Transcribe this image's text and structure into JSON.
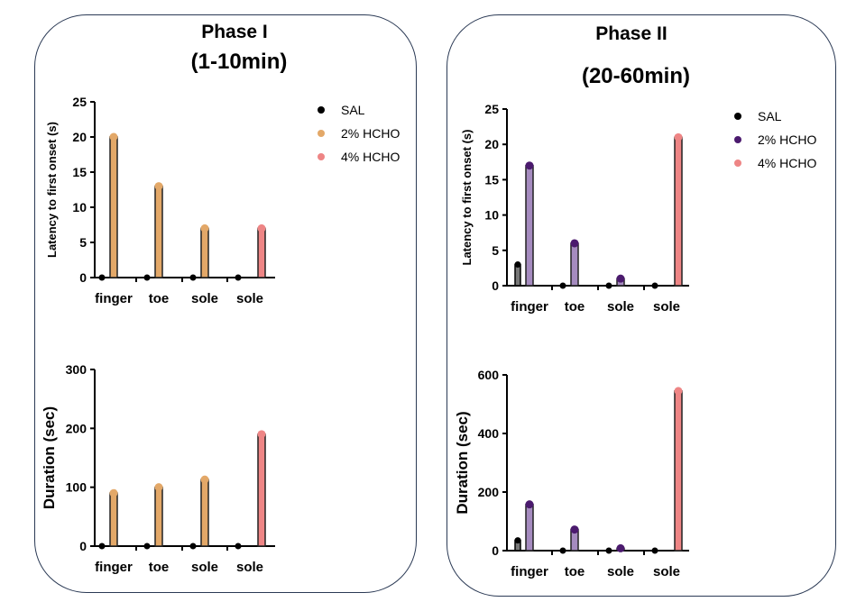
{
  "panels": [
    {
      "title": "Phase I",
      "subtitle": "(1-10min)"
    },
    {
      "title": "Phase II",
      "subtitle": "(20-60min)"
    }
  ],
  "colors": {
    "SAL": "#000000",
    "2% HCHO": "#e3a868",
    "4% HCHO": "#ee8585"
  },
  "chart_data": [
    {
      "type": "bar",
      "panel": "Phase I",
      "title": "",
      "ylabel": "Latency to first onset (s)",
      "xlabel": "",
      "categories": [
        "finger",
        "toe",
        "sole",
        "sole"
      ],
      "series": [
        {
          "name": "SAL",
          "color": "#000000",
          "values": [
            0,
            0,
            0,
            0
          ]
        },
        {
          "name": "2% HCHO",
          "color": "#e3a868",
          "values": [
            20,
            13,
            7,
            null
          ]
        },
        {
          "name": "4% HCHO",
          "color": "#ee8585",
          "values": [
            null,
            null,
            null,
            7
          ]
        }
      ],
      "ylim": [
        0,
        25
      ],
      "yticks": [
        0,
        5,
        10,
        15,
        20,
        25
      ],
      "legend": "right",
      "grid": false
    },
    {
      "type": "bar",
      "panel": "Phase I",
      "title": "",
      "ylabel": "Duration (sec)",
      "xlabel": "",
      "categories": [
        "finger",
        "toe",
        "sole",
        "sole"
      ],
      "series": [
        {
          "name": "SAL",
          "color": "#000000",
          "values": [
            0,
            0,
            0,
            0
          ]
        },
        {
          "name": "2% HCHO",
          "color": "#e3a868",
          "values": [
            90,
            100,
            113,
            null
          ]
        },
        {
          "name": "4% HCHO",
          "color": "#ee8585",
          "values": [
            null,
            null,
            null,
            190
          ]
        }
      ],
      "ylim": [
        0,
        300
      ],
      "yticks": [
        0,
        100,
        200,
        300
      ],
      "grid": false
    },
    {
      "type": "bar",
      "panel": "Phase II",
      "title": "",
      "ylabel": "Latency to first onset (s)",
      "xlabel": "",
      "categories": [
        "finger",
        "toe",
        "sole",
        "sole"
      ],
      "series": [
        {
          "name": "SAL",
          "color": "#000000",
          "values": [
            3,
            0,
            0,
            0
          ]
        },
        {
          "name": "2% HCHO",
          "color": "#4b1a6e",
          "values": [
            17,
            6,
            1,
            null
          ]
        },
        {
          "name": "4% HCHO",
          "color": "#ee8585",
          "values": [
            null,
            null,
            null,
            21
          ]
        }
      ],
      "ylim": [
        0,
        25
      ],
      "yticks": [
        0,
        5,
        10,
        15,
        20,
        25
      ],
      "legend": "right",
      "grid": false
    },
    {
      "type": "bar",
      "panel": "Phase II",
      "title": "",
      "ylabel": "Duration (sec)",
      "xlabel": "",
      "categories": [
        "finger",
        "toe",
        "sole",
        "sole"
      ],
      "series": [
        {
          "name": "SAL",
          "color": "#000000",
          "values": [
            35,
            0,
            0,
            0
          ]
        },
        {
          "name": "2% HCHO",
          "color": "#4b1a6e",
          "values": [
            158,
            72,
            8,
            null
          ]
        },
        {
          "name": "4% HCHO",
          "color": "#ee8585",
          "values": [
            null,
            null,
            null,
            545
          ]
        }
      ],
      "ylim": [
        0,
        600
      ],
      "yticks": [
        0,
        200,
        400,
        600
      ],
      "grid": false
    }
  ]
}
